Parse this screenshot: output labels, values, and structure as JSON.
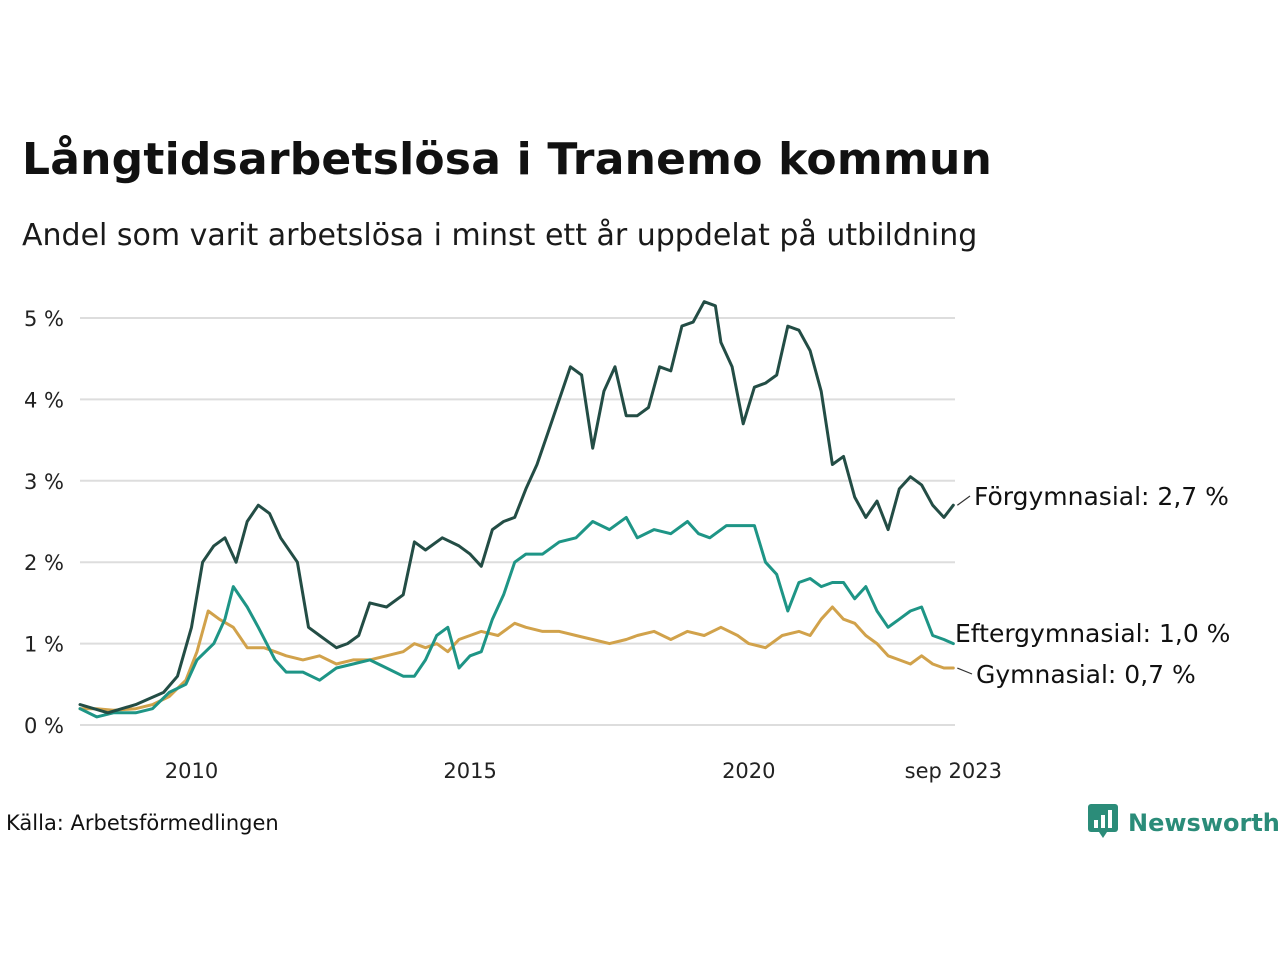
{
  "title": "Långtidsarbetslösa i Tranemo kommun",
  "subtitle": "Andel som varit arbetslösa i minst ett år uppdelat på utbildning",
  "source": "Källa: Arbetsförmedlingen",
  "brand": {
    "name": "Newsworthy",
    "icon": "bar-chart-speech-icon",
    "color": "#2b8c79"
  },
  "chart_data": {
    "type": "line",
    "title": "Långtidsarbetslösa i Tranemo kommun",
    "subtitle": "Andel som varit arbetslösa i minst ett år uppdelat på utbildning",
    "xlabel": "",
    "ylabel": "",
    "xlim": [
      2008.0,
      2023.7
    ],
    "ylim": [
      0,
      5.3
    ],
    "grid": true,
    "y_ticks": [
      0,
      1,
      2,
      3,
      4,
      5
    ],
    "y_tick_labels": [
      "0 %",
      "1 %",
      "2 %",
      "3 %",
      "4 %",
      "5 %"
    ],
    "x_ticks": [
      2010,
      2015,
      2020,
      2023.67
    ],
    "x_tick_labels": [
      "2010",
      "2015",
      "2020",
      "sep 2023"
    ],
    "series": [
      {
        "name": "Förgymnasial",
        "label": "Förgymnasial: 2,7 %",
        "color": "#234d45",
        "x": [
          2008.0,
          2008.5,
          2009.0,
          2009.5,
          2009.75,
          2010.0,
          2010.2,
          2010.4,
          2010.6,
          2010.8,
          2011.0,
          2011.2,
          2011.4,
          2011.6,
          2011.9,
          2012.1,
          2012.3,
          2012.6,
          2012.8,
          2013.0,
          2013.2,
          2013.5,
          2013.8,
          2014.0,
          2014.2,
          2014.5,
          2014.8,
          2015.0,
          2015.2,
          2015.4,
          2015.6,
          2015.8,
          2016.0,
          2016.2,
          2016.4,
          2016.6,
          2016.8,
          2017.0,
          2017.2,
          2017.4,
          2017.6,
          2017.8,
          2018.0,
          2018.2,
          2018.4,
          2018.6,
          2018.8,
          2019.0,
          2019.2,
          2019.4,
          2019.5,
          2019.7,
          2019.9,
          2020.1,
          2020.3,
          2020.5,
          2020.7,
          2020.9,
          2021.1,
          2021.3,
          2021.5,
          2021.7,
          2021.9,
          2022.1,
          2022.3,
          2022.5,
          2022.7,
          2022.9,
          2023.1,
          2023.3,
          2023.5,
          2023.67
        ],
        "values": [
          0.25,
          0.15,
          0.25,
          0.4,
          0.6,
          1.2,
          2.0,
          2.2,
          2.3,
          2.0,
          2.5,
          2.7,
          2.6,
          2.3,
          2.0,
          1.2,
          1.1,
          0.95,
          1.0,
          1.1,
          1.5,
          1.45,
          1.6,
          2.25,
          2.15,
          2.3,
          2.2,
          2.1,
          1.95,
          2.4,
          2.5,
          2.55,
          2.9,
          3.2,
          3.6,
          4.0,
          4.4,
          4.3,
          3.4,
          4.1,
          4.4,
          3.8,
          3.8,
          3.9,
          4.4,
          4.35,
          4.9,
          4.95,
          5.2,
          5.15,
          4.7,
          4.4,
          3.7,
          4.15,
          4.2,
          4.3,
          4.9,
          4.85,
          4.6,
          4.1,
          3.2,
          3.3,
          2.8,
          2.55,
          2.75,
          2.4,
          2.9,
          3.05,
          2.95,
          2.7,
          2.55,
          2.7
        ]
      },
      {
        "name": "Eftergymnasial",
        "label": "Eftergymnasial: 1,0 %",
        "color": "#1e9586",
        "x": [
          2008.0,
          2008.3,
          2008.6,
          2009.0,
          2009.3,
          2009.6,
          2009.9,
          2010.1,
          2010.4,
          2010.6,
          2010.75,
          2011.0,
          2011.2,
          2011.5,
          2011.7,
          2012.0,
          2012.3,
          2012.6,
          2012.9,
          2013.2,
          2013.5,
          2013.8,
          2014.0,
          2014.2,
          2014.4,
          2014.6,
          2014.8,
          2015.0,
          2015.2,
          2015.4,
          2015.6,
          2015.8,
          2016.0,
          2016.3,
          2016.6,
          2016.9,
          2017.2,
          2017.5,
          2017.8,
          2018.0,
          2018.3,
          2018.6,
          2018.9,
          2019.1,
          2019.3,
          2019.6,
          2019.9,
          2020.1,
          2020.3,
          2020.5,
          2020.7,
          2020.9,
          2021.1,
          2021.3,
          2021.5,
          2021.7,
          2021.9,
          2022.1,
          2022.3,
          2022.5,
          2022.7,
          2022.9,
          2023.1,
          2023.3,
          2023.5,
          2023.67
        ],
        "values": [
          0.2,
          0.1,
          0.15,
          0.15,
          0.2,
          0.4,
          0.5,
          0.8,
          1.0,
          1.3,
          1.7,
          1.45,
          1.2,
          0.8,
          0.65,
          0.65,
          0.55,
          0.7,
          0.75,
          0.8,
          0.7,
          0.6,
          0.6,
          0.8,
          1.1,
          1.2,
          0.7,
          0.85,
          0.9,
          1.3,
          1.6,
          2.0,
          2.1,
          2.1,
          2.25,
          2.3,
          2.5,
          2.4,
          2.55,
          2.3,
          2.4,
          2.35,
          2.5,
          2.35,
          2.3,
          2.45,
          2.45,
          2.45,
          2.0,
          1.85,
          1.4,
          1.75,
          1.8,
          1.7,
          1.75,
          1.75,
          1.55,
          1.7,
          1.4,
          1.2,
          1.3,
          1.4,
          1.45,
          1.1,
          1.05,
          1.0
        ]
      },
      {
        "name": "Gymnasial",
        "label": "Gymnasial: 0,7 %",
        "color": "#d1a24b",
        "x": [
          2008.0,
          2008.3,
          2008.6,
          2009.0,
          2009.3,
          2009.6,
          2009.9,
          2010.1,
          2010.3,
          2010.5,
          2010.75,
          2011.0,
          2011.3,
          2011.5,
          2011.7,
          2012.0,
          2012.3,
          2012.6,
          2012.9,
          2013.2,
          2013.5,
          2013.8,
          2014.0,
          2014.2,
          2014.4,
          2014.6,
          2014.8,
          2015.0,
          2015.2,
          2015.5,
          2015.8,
          2016.0,
          2016.3,
          2016.6,
          2016.9,
          2017.2,
          2017.5,
          2017.8,
          2018.0,
          2018.3,
          2018.6,
          2018.9,
          2019.2,
          2019.5,
          2019.8,
          2020.0,
          2020.3,
          2020.6,
          2020.9,
          2021.1,
          2021.3,
          2021.5,
          2021.7,
          2021.9,
          2022.1,
          2022.3,
          2022.5,
          2022.7,
          2022.9,
          2023.1,
          2023.3,
          2023.5,
          2023.67
        ],
        "values": [
          0.2,
          0.2,
          0.18,
          0.2,
          0.25,
          0.35,
          0.55,
          0.9,
          1.4,
          1.3,
          1.2,
          0.95,
          0.95,
          0.9,
          0.85,
          0.8,
          0.85,
          0.75,
          0.8,
          0.8,
          0.85,
          0.9,
          1.0,
          0.95,
          1.0,
          0.9,
          1.05,
          1.1,
          1.15,
          1.1,
          1.25,
          1.2,
          1.15,
          1.15,
          1.1,
          1.05,
          1.0,
          1.05,
          1.1,
          1.15,
          1.05,
          1.15,
          1.1,
          1.2,
          1.1,
          1.0,
          0.95,
          1.1,
          1.15,
          1.1,
          1.3,
          1.45,
          1.3,
          1.25,
          1.1,
          1.0,
          0.85,
          0.8,
          0.75,
          0.85,
          0.75,
          0.7,
          0.7
        ]
      }
    ]
  }
}
